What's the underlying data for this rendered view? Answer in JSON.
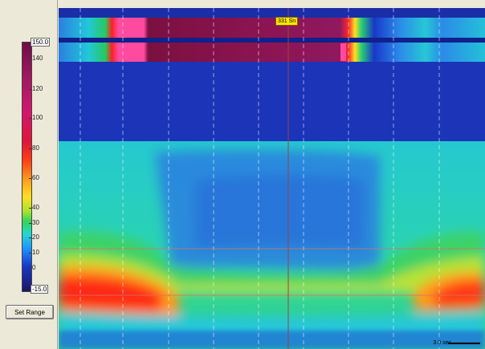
{
  "colorbar": {
    "max_value": "150.0",
    "min_value": "-15.0",
    "ticks": [
      "140",
      "120",
      "100",
      "80",
      "60",
      "40",
      "30",
      "20",
      "10",
      "0"
    ]
  },
  "buttons": {
    "set_range_label": "Set Range"
  },
  "plot": {
    "time_marker": "331 Sn",
    "scale_label": "3.0 sec"
  },
  "colors": {
    "background": "#ece9d8",
    "plot_background": "#1a2ea8"
  }
}
